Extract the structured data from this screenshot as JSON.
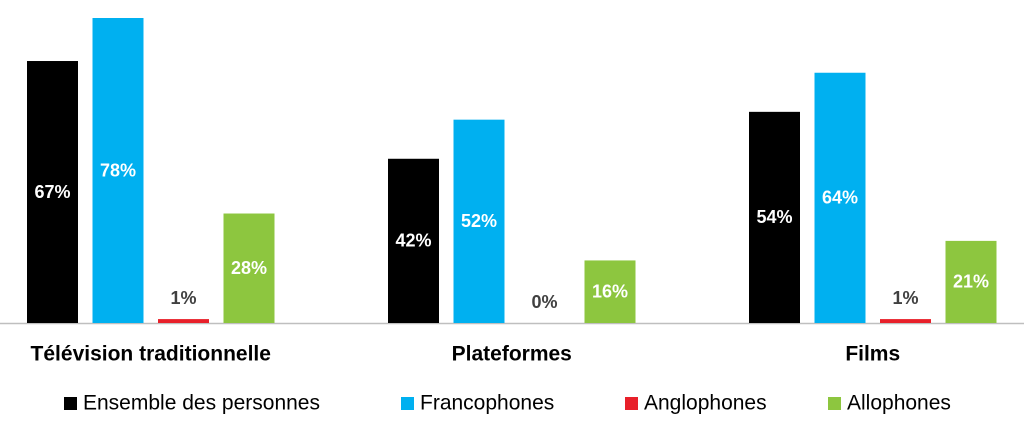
{
  "chart_data": {
    "type": "bar",
    "categories": [
      "Télévision traditionnelle",
      "Plateformes",
      "Films"
    ],
    "series": [
      {
        "name": "Ensemble des personnes",
        "color": "#000000",
        "values": [
          67,
          42,
          54
        ],
        "value_labels": [
          "67%",
          "42%",
          "54%"
        ]
      },
      {
        "name": "Francophones",
        "color": "#00b0f0",
        "values": [
          78,
          52,
          64
        ],
        "value_labels": [
          "78%",
          "52%",
          "64%"
        ]
      },
      {
        "name": "Anglophones",
        "color": "#e8202a",
        "values": [
          1,
          0,
          1
        ],
        "value_labels": [
          "1%",
          "0%",
          "1%"
        ]
      },
      {
        "name": "Allophones",
        "color": "#8dc63f",
        "values": [
          28,
          16,
          21
        ],
        "value_labels": [
          "28%",
          "16%",
          "21%"
        ]
      }
    ],
    "legend": "bottom"
  }
}
